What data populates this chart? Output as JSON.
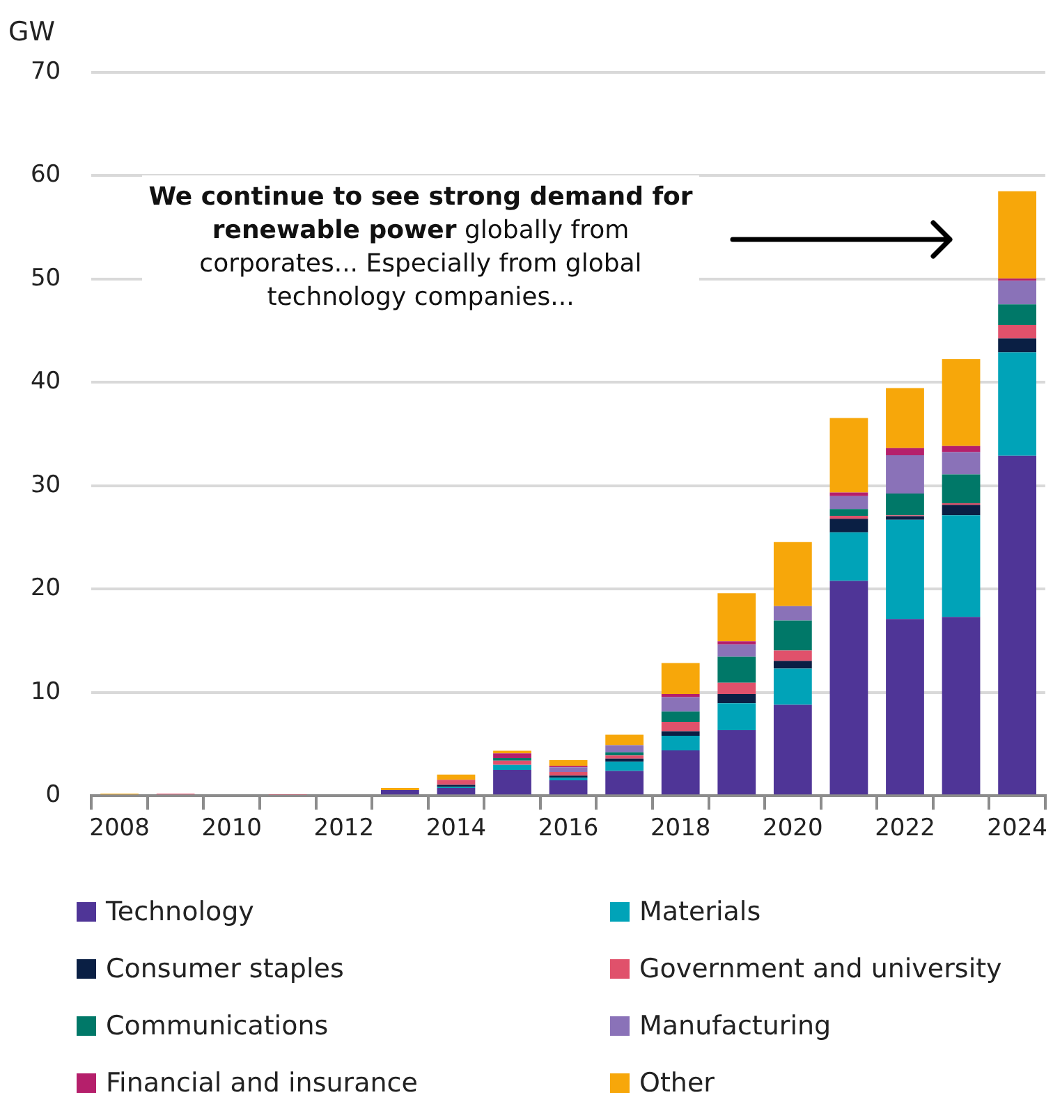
{
  "chart_data": {
    "type": "bar",
    "stacked": true,
    "ylabel": "GW",
    "categories": [
      "2008",
      null,
      "2010",
      null,
      "2012",
      null,
      "2014",
      null,
      "2016",
      null,
      "2018",
      null,
      "2020",
      null,
      "2022",
      null,
      "2024"
    ],
    "series": [
      {
        "name": "Technology",
        "color": "#4f3597",
        "values": [
          0,
          0,
          0,
          0,
          0,
          0.55,
          0.75,
          2.5,
          1.5,
          2.4,
          4.4,
          6.35,
          8.8,
          20.8,
          17.1,
          17.3,
          32.9
        ]
      },
      {
        "name": "Materials",
        "color": "#00a3b8",
        "values": [
          0,
          0,
          0,
          0,
          0,
          0,
          0.1,
          0.5,
          0.25,
          0.9,
          1.4,
          2.6,
          3.5,
          4.7,
          9.6,
          9.85,
          10.0
        ]
      },
      {
        "name": "Consumer staples",
        "color": "#0a1f44",
        "values": [
          0,
          0,
          0,
          0,
          0,
          0,
          0.2,
          0,
          0.2,
          0.3,
          0.45,
          0.9,
          0.75,
          1.3,
          0.35,
          1.0,
          1.35
        ]
      },
      {
        "name": "Government and university",
        "color": "#e0516b",
        "values": [
          0,
          0.2,
          0,
          0.1,
          0,
          0,
          0.5,
          0.4,
          0.35,
          0.3,
          0.9,
          1.1,
          1.0,
          0.3,
          0.1,
          0.15,
          1.3
        ]
      },
      {
        "name": "Communications",
        "color": "#007868",
        "values": [
          0,
          0,
          0,
          0,
          0,
          0,
          0,
          0.25,
          0,
          0.3,
          1.0,
          2.5,
          2.9,
          0.65,
          2.1,
          2.8,
          2.0
        ]
      },
      {
        "name": "Manufacturing",
        "color": "#8a72b8",
        "values": [
          0,
          0,
          0,
          0,
          0,
          0,
          0,
          0,
          0.45,
          0.7,
          1.4,
          1.2,
          1.4,
          1.25,
          3.7,
          2.15,
          2.3
        ]
      },
      {
        "name": "Financial and insurance",
        "color": "#b51f6b",
        "values": [
          0,
          0,
          0,
          0,
          0,
          0,
          0,
          0.45,
          0.15,
          0,
          0.3,
          0.3,
          0,
          0.35,
          0.7,
          0.6,
          0.2
        ]
      },
      {
        "name": "Other",
        "color": "#f7a70a",
        "values": [
          0.2,
          0,
          0,
          0,
          0,
          0.2,
          0.5,
          0.25,
          0.55,
          1.0,
          3.0,
          4.65,
          6.2,
          7.2,
          5.8,
          8.4,
          8.45
        ]
      }
    ],
    "ylim": [
      0,
      70
    ],
    "yticks": [
      0,
      10,
      20,
      30,
      40,
      50,
      60,
      70
    ],
    "grid": "y",
    "legend": "bottom",
    "annotations": [
      "We continue to see strong demand for renewable power",
      "globally from corporates... Especially from global technology companies..."
    ]
  }
}
